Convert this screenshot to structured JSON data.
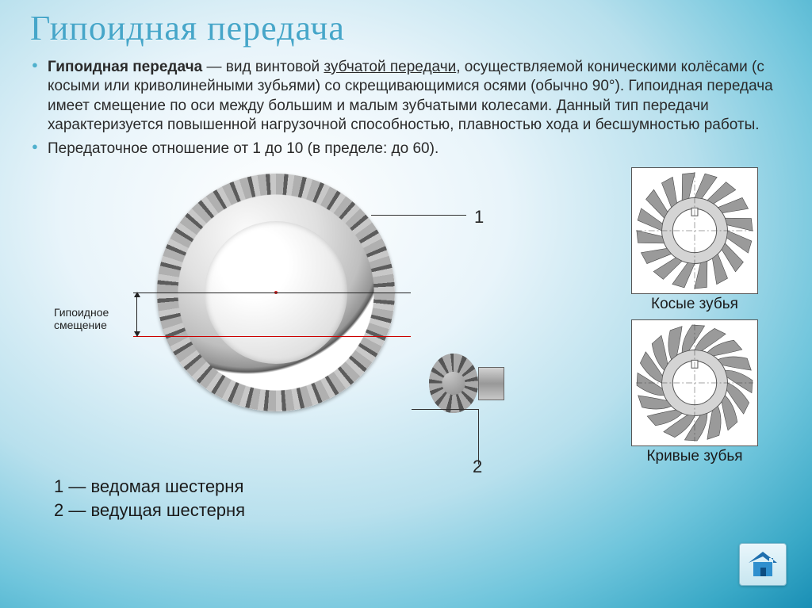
{
  "title": "Гипоидная передача",
  "bullets": {
    "b1_prefix": "Гипоидная передача",
    "b1_middle": " — вид винтовой ",
    "b1_underline": "зубчатой передачи",
    "b1_suffix": ", осуществляемой коническими колёсами (с косыми или криволинейными зубьями) со скрещивающимися осями (обычно 90°). Гипоидная передача имеет смещение по оси между большим и малым зубчатыми колесами. Данный тип передачи характеризуется повышенной нагрузочной способностью, плавностью хода и бесшумностью работы.",
    "b2": "Передаточное отношение от 1 до 10 (в пределе: до 60)."
  },
  "diagram": {
    "offset_label_line1": "Гипоидное",
    "offset_label_line2": "смещение",
    "marker1": "1",
    "marker2": "2",
    "legend1": "1 — ведомая шестерня",
    "legend2": "2 — ведущая шестерня",
    "colors": {
      "center_dot": "#d02020",
      "offset_line": "#cc0000",
      "leader": "#333333"
    }
  },
  "side": {
    "caption1": "Косые зубья",
    "caption2": "Кривые зубья",
    "teeth1_count": 16,
    "teeth2_count": 16,
    "gear_fill": "#9a9a9a",
    "gear_light": "#d4d4d4",
    "gear_dark": "#4a4a4a"
  },
  "home_icon": {
    "roof_color": "#1f6fae",
    "wall_color": "#2f8fce"
  }
}
